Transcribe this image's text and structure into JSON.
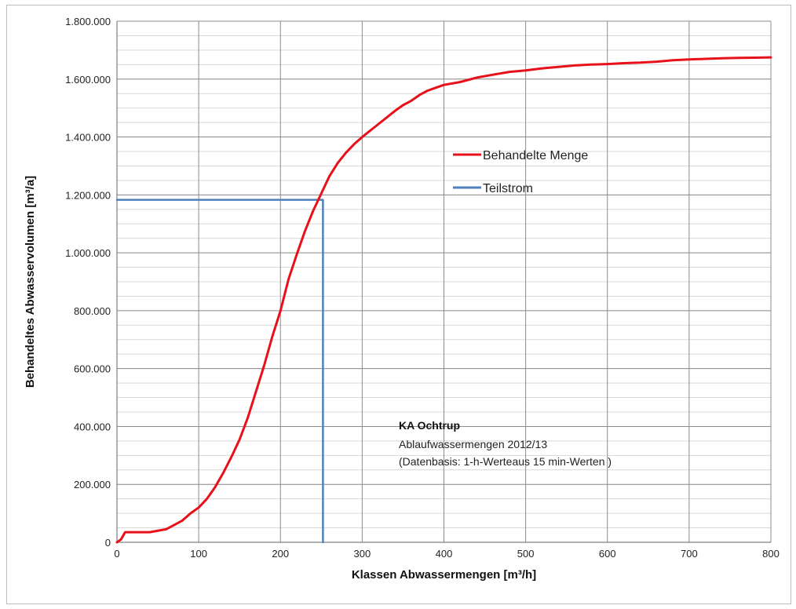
{
  "chart_data": {
    "type": "line",
    "title": "",
    "xlabel": "Klassen Abwassermengen [m³/h]",
    "ylabel": "Behandeltes Abwasservolumen [m³/a]",
    "xlim": [
      0,
      800
    ],
    "ylim": [
      0,
      1800000
    ],
    "x_ticks": [
      0,
      100,
      200,
      300,
      400,
      500,
      600,
      700,
      800
    ],
    "y_ticks": [
      0,
      200000,
      400000,
      600000,
      800000,
      1000000,
      1200000,
      1400000,
      1600000,
      1800000
    ],
    "x_tick_labels": [
      "0",
      "100",
      "200",
      "300",
      "400",
      "500",
      "600",
      "700",
      "800"
    ],
    "y_tick_labels": [
      "0",
      "200.000",
      "400.000",
      "600.000",
      "800.000",
      "1.000.000",
      "1.200.000",
      "1.400.000",
      "1.600.000",
      "1.800.000"
    ],
    "grid": true,
    "minor_y_grid_step": 50000,
    "legend_position": "upper-center-right",
    "series": [
      {
        "name": "Behandelte Menge",
        "color": "#e8101a",
        "x": [
          0,
          5,
          10,
          20,
          40,
          60,
          70,
          80,
          90,
          100,
          110,
          120,
          130,
          140,
          150,
          160,
          170,
          180,
          190,
          200,
          210,
          220,
          230,
          240,
          250,
          260,
          270,
          280,
          290,
          300,
          320,
          340,
          350,
          360,
          370,
          380,
          390,
          400,
          420,
          440,
          460,
          480,
          500,
          520,
          540,
          560,
          580,
          600,
          620,
          640,
          660,
          680,
          700,
          720,
          740,
          760,
          780,
          800
        ],
        "y": [
          0,
          10000,
          35000,
          35000,
          35000,
          45000,
          60000,
          75000,
          100000,
          120000,
          150000,
          190000,
          240000,
          295000,
          355000,
          430000,
          520000,
          610000,
          710000,
          800000,
          910000,
          995000,
          1075000,
          1145000,
          1205000,
          1265000,
          1310000,
          1345000,
          1375000,
          1400000,
          1445000,
          1490000,
          1510000,
          1525000,
          1545000,
          1560000,
          1570000,
          1580000,
          1590000,
          1605000,
          1615000,
          1625000,
          1630000,
          1637000,
          1642000,
          1647000,
          1650000,
          1652000,
          1655000,
          1657000,
          1660000,
          1665000,
          1668000,
          1670000,
          1672000,
          1673000,
          1674000,
          1675000
        ]
      },
      {
        "name": "Teilstrom",
        "color": "#4f81bd",
        "x": [
          0,
          252,
          252
        ],
        "y": [
          1183000,
          1183000,
          0
        ]
      }
    ],
    "annotation": {
      "title": "KA Ochtrup",
      "line1": "Ablaufwassermengen 2012/13",
      "line2": "(Datenbasis: 1-h-Werteaus 15 min-Werten )"
    }
  }
}
